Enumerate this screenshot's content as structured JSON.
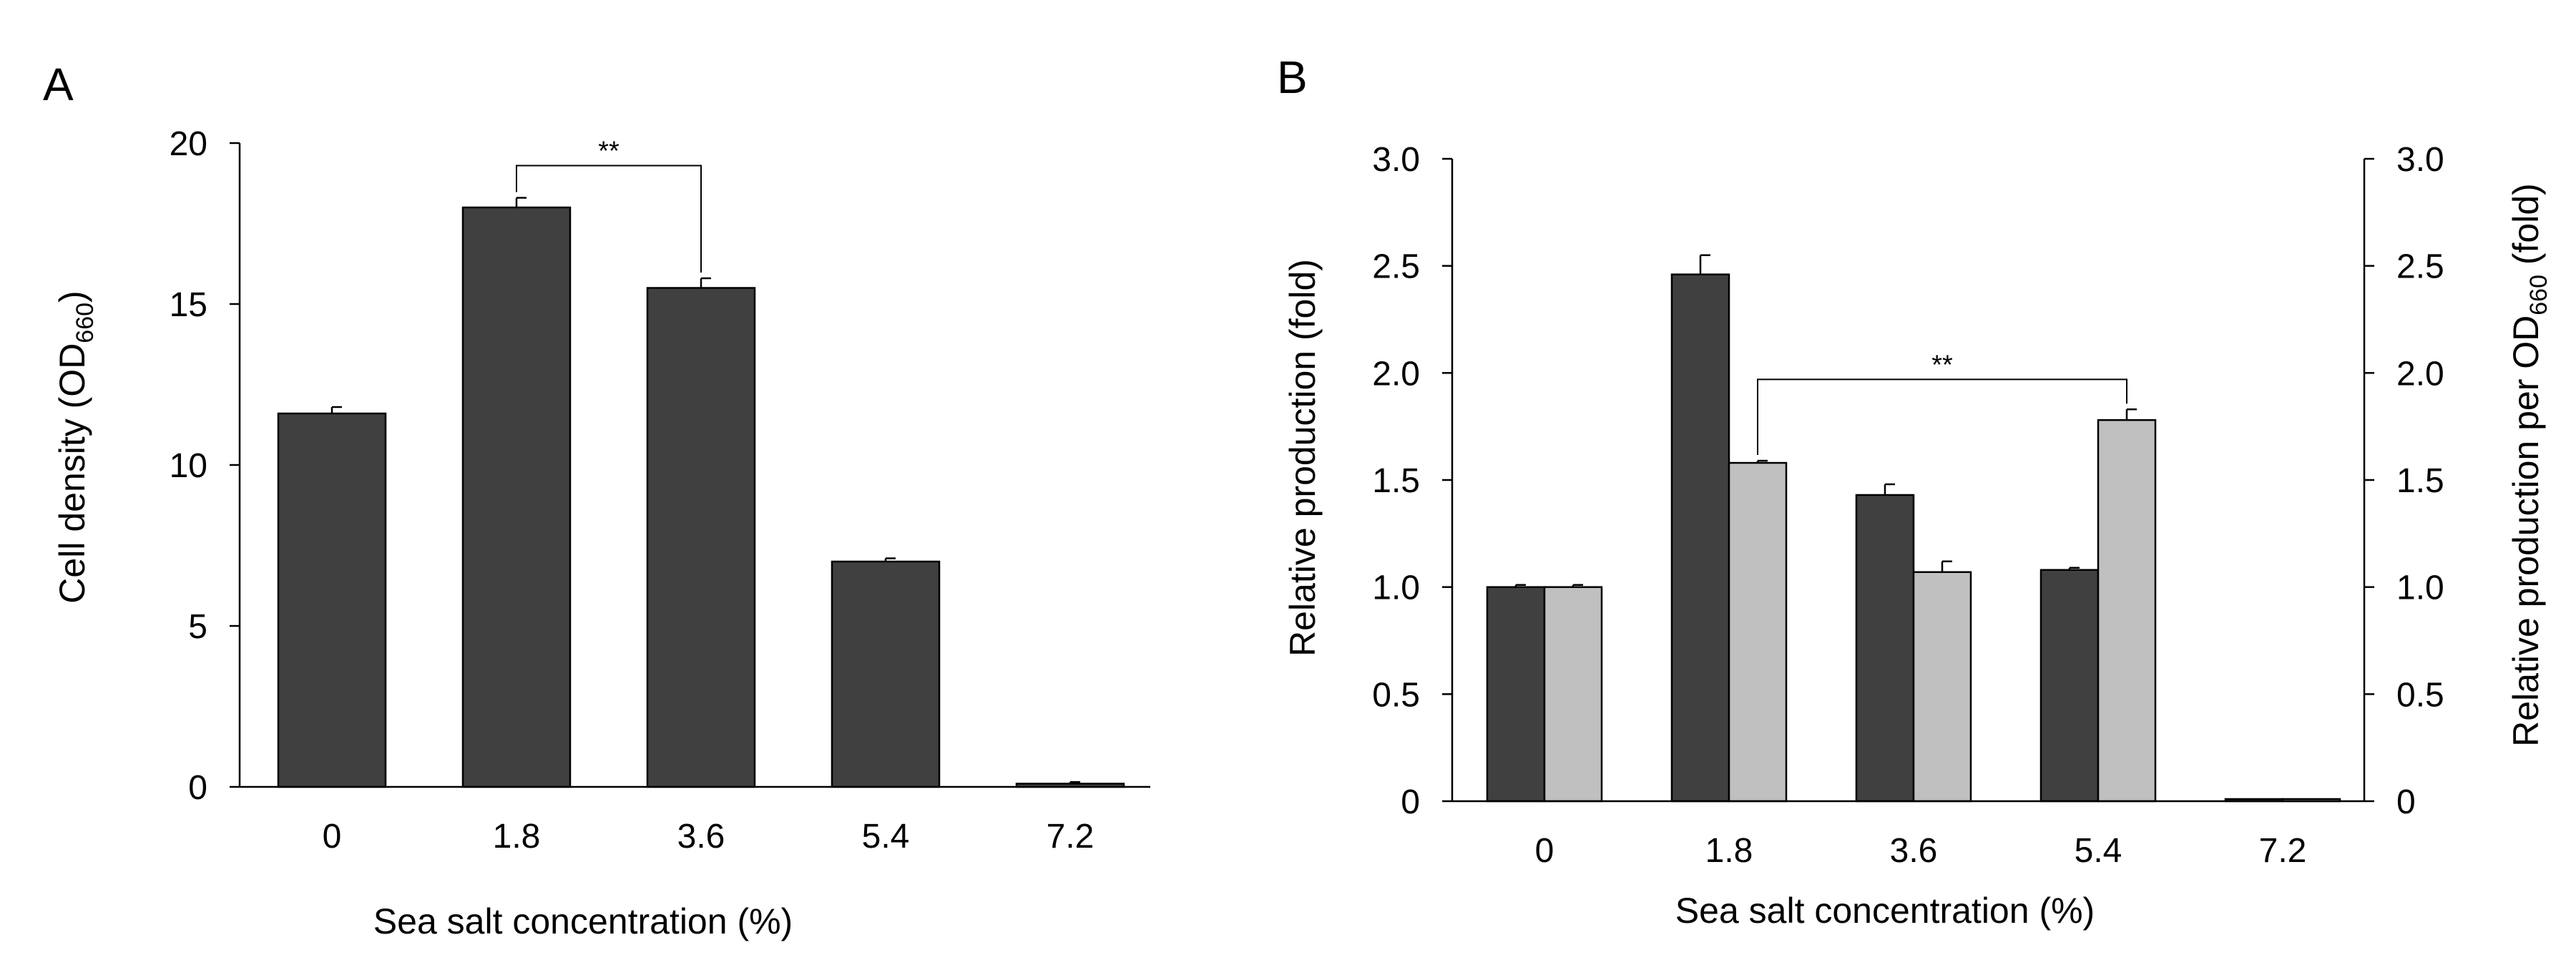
{
  "chart_data": [
    {
      "panel_label": "A",
      "type": "bar",
      "title": "",
      "xlabel": "Sea salt concentration (%)",
      "ylabel": {
        "main": "Cell density (OD",
        "sub": "660",
        "suffix": ")"
      },
      "categories": [
        "0",
        "1.8",
        "3.6",
        "5.4",
        "7.2"
      ],
      "yticks": [
        0,
        5,
        10,
        15,
        20
      ],
      "ylim": [
        0,
        20
      ],
      "series": [
        {
          "name": "Cell density",
          "color": "#404040",
          "values": [
            11.6,
            18.0,
            15.5,
            7.0,
            0.1
          ],
          "errors": [
            0.2,
            0.3,
            0.3,
            0.1,
            0.05
          ]
        }
      ],
      "significance": [
        {
          "from_category": 1,
          "to_category": 2,
          "series": 0,
          "level": 19.3,
          "label": "**"
        }
      ]
    },
    {
      "panel_label": "B",
      "type": "bar",
      "title": "",
      "xlabel": "Sea salt concentration (%)",
      "ylabel": "Relative production (fold)",
      "ylabel_right": {
        "main": "Relative production per OD",
        "sub": "660",
        "suffix": " (fold)"
      },
      "categories": [
        "0",
        "1.8",
        "3.6",
        "5.4",
        "7.2"
      ],
      "yticks": [
        0,
        0.5,
        1.0,
        1.5,
        2.0,
        2.5,
        3.0
      ],
      "ytick_labels": [
        "0",
        "0.5",
        "1.0",
        "1.5",
        "2.0",
        "2.5",
        "3.0"
      ],
      "ylim": [
        0,
        3
      ],
      "series": [
        {
          "name": "Relative production",
          "color": "#404040",
          "values": [
            1.0,
            2.46,
            1.43,
            1.08,
            0.0
          ],
          "errors": [
            0.01,
            0.09,
            0.05,
            0.01,
            0.0
          ]
        },
        {
          "name": "Relative production per OD660",
          "color": "#c0c0c0",
          "values": [
            1.0,
            1.58,
            1.07,
            1.78,
            0.0
          ],
          "errors": [
            0.01,
            0.01,
            0.05,
            0.05,
            0.0
          ]
        }
      ],
      "significance": [
        {
          "from_category": 1,
          "to_category": 3,
          "series": 1,
          "level": 1.97,
          "label": "**"
        }
      ]
    }
  ]
}
